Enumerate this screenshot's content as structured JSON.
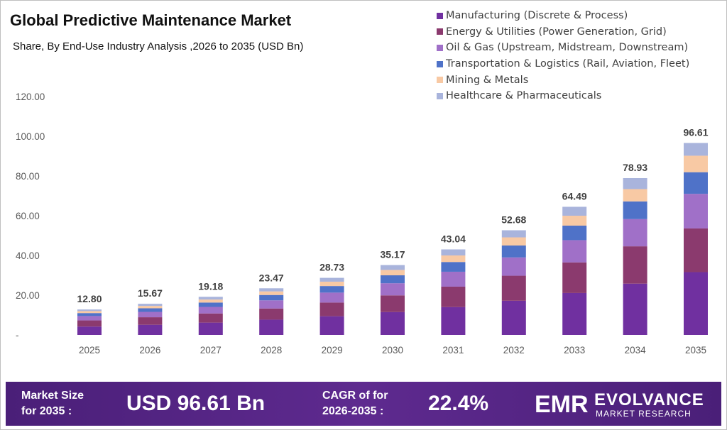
{
  "header": {
    "title": "Global Predictive Maintenance Market",
    "subtitle": "Share, By End-Use Industry Analysis ,2026 to 2035 (USD Bn)"
  },
  "colors": {
    "banner": "#4a1f78",
    "axis_text": "#595959",
    "total_label": "#404040"
  },
  "chart_data": {
    "type": "bar",
    "stacked": true,
    "categories": [
      "2025",
      "2026",
      "2027",
      "2028",
      "2029",
      "2030",
      "2031",
      "2032",
      "2033",
      "2034",
      "2035"
    ],
    "ylim": [
      0,
      120
    ],
    "yticks": [
      "-",
      "20.00",
      "40.00",
      "60.00",
      "80.00",
      "100.00",
      "120.00"
    ],
    "grid": false,
    "legend_position": "top-right",
    "totals": [
      "12.80",
      "15.67",
      "19.18",
      "23.47",
      "28.73",
      "35.17",
      "43.04",
      "52.68",
      "64.49",
      "78.93",
      "96.61"
    ],
    "series": [
      {
        "name": "Manufacturing (Discrete & Process)",
        "color": "#7030a0",
        "values": [
          4.2,
          5.1,
          6.2,
          7.7,
          9.4,
          11.5,
          14.0,
          17.2,
          21.1,
          25.8,
          31.6
        ]
      },
      {
        "name": "Energy & Utilities (Power Generation, Grid)",
        "color": "#8b3a6e",
        "values": [
          3.1,
          3.8,
          4.6,
          5.6,
          6.9,
          8.4,
          10.3,
          12.6,
          15.4,
          18.8,
          22.0
        ]
      },
      {
        "name": "Oil & Gas (Upstream, Midstream, Downstream)",
        "color": "#a070c8",
        "values": [
          2.2,
          2.7,
          3.3,
          4.1,
          5.0,
          6.1,
          7.5,
          9.2,
          11.2,
          13.7,
          17.4
        ]
      },
      {
        "name": "Transportation & Logistics (Rail, Aviation, Fleet)",
        "color": "#4f72c8",
        "values": [
          1.5,
          1.8,
          2.2,
          2.7,
          3.3,
          4.0,
          4.9,
          6.0,
          7.3,
          8.9,
          10.9
        ]
      },
      {
        "name": "Mining & Metals",
        "color": "#f8c9a4",
        "values": [
          1.0,
          1.2,
          1.5,
          1.8,
          2.2,
          2.7,
          3.3,
          4.1,
          5.0,
          6.2,
          8.3
        ]
      },
      {
        "name": "Healthcare & Pharmaceuticals",
        "color": "#a9b4dc",
        "values": [
          0.8,
          1.07,
          1.38,
          1.57,
          1.93,
          2.47,
          3.04,
          3.58,
          4.49,
          5.53,
          6.41
        ]
      }
    ]
  },
  "banner": {
    "market_size_label": "Market Size\nfor 2035 :",
    "market_size_value": "USD 96.61 Bn",
    "cagr_label": "CAGR of for\n2026-2035 :",
    "cagr_value": "22.4%",
    "logo_letters": "EMR",
    "logo_word": "EVOLVANCE",
    "logo_tagline": "MARKET RESEARCH"
  }
}
